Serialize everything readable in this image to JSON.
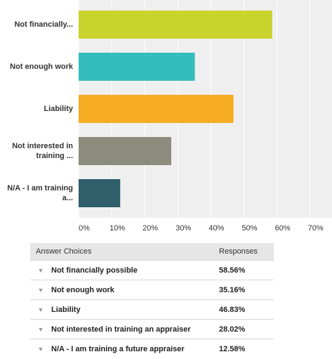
{
  "chart_data": {
    "type": "bar",
    "orientation": "horizontal",
    "categories": [
      "Not financially...",
      "Not enough work",
      "Liability",
      "Not interested in training ...",
      "N/A - I am training a..."
    ],
    "values": [
      58.56,
      35.16,
      46.83,
      28.02,
      12.58
    ],
    "xlim": [
      0,
      75
    ],
    "ticks": [
      "0%",
      "10%",
      "20%",
      "30%",
      "40%",
      "50%",
      "60%",
      "70%"
    ],
    "colors": [
      "#c9d42d",
      "#34bdbd",
      "#f5ac22",
      "#8c8c7c",
      "#2e5f6a"
    ],
    "grid": true
  },
  "table": {
    "headers": {
      "choice": "Answer Choices",
      "responses": "Responses"
    },
    "rows": [
      {
        "choice": "Not financially possible",
        "value": "58.56%"
      },
      {
        "choice": "Not enough work",
        "value": "35.16%"
      },
      {
        "choice": "Liability",
        "value": "46.83%"
      },
      {
        "choice": "Not interested in training an appraiser",
        "value": "28.02%"
      },
      {
        "choice": "N/A - I am training a future appraiser",
        "value": "12.58%"
      }
    ]
  }
}
